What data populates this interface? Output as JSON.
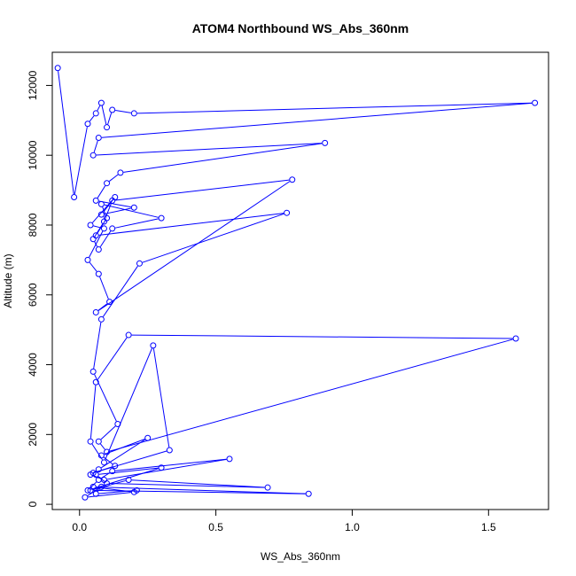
{
  "chart_data": {
    "type": "line",
    "title": "ATOM4 Northbound WS_Abs_360nm",
    "xlabel": "WS_Abs_360nm",
    "ylabel": "Altitude (m)",
    "xlim": [
      -0.1,
      1.72
    ],
    "ylim": [
      -150,
      12950
    ],
    "xticks": [
      0.0,
      0.5,
      1.0,
      1.5
    ],
    "xtick_labels": [
      "0.0",
      "0.5",
      "1.0",
      "1.5"
    ],
    "yticks": [
      0,
      2000,
      4000,
      6000,
      8000,
      10000,
      12000
    ],
    "ytick_labels": [
      "0",
      "2000",
      "4000",
      "6000",
      "8000",
      "10000",
      "12000"
    ],
    "marker": "open-circle",
    "color": "#0000ff",
    "series": [
      {
        "x": [
          -0.08,
          -0.02,
          0.03,
          0.06,
          0.08,
          0.1,
          0.12,
          0.2,
          1.67,
          0.07,
          0.05,
          0.9,
          0.15,
          0.1,
          0.06,
          0.2,
          0.08,
          0.13,
          0.04,
          0.09,
          0.03,
          0.07,
          0.11,
          0.06,
          0.78,
          0.12,
          0.09,
          0.05,
          0.07,
          0.12,
          0.3,
          0.08,
          0.1,
          0.06,
          0.76,
          0.22,
          0.08,
          0.05,
          0.14,
          0.07,
          0.1,
          1.6,
          0.18,
          0.06,
          0.04,
          0.09,
          0.27,
          0.33,
          0.05,
          0.13,
          0.08,
          0.25,
          0.07,
          0.04,
          0.09,
          0.55,
          0.12,
          0.07,
          0.03,
          0.3,
          0.06,
          0.1,
          0.69,
          0.18,
          0.04,
          0.84,
          0.05,
          0.2,
          0.02,
          0.08,
          0.06,
          0.21
        ],
        "y": [
          12500,
          8800,
          10900,
          11200,
          11500,
          10800,
          11300,
          11200,
          11500,
          10500,
          10000,
          10350,
          9500,
          9200,
          8700,
          8500,
          8300,
          8800,
          8000,
          7900,
          7000,
          6600,
          5800,
          5500,
          9300,
          8700,
          8100,
          7600,
          7300,
          7900,
          8200,
          8600,
          8200,
          7700,
          8350,
          6900,
          5300,
          3800,
          2300,
          1800,
          1500,
          4750,
          4850,
          3500,
          1800,
          1200,
          4550,
          1550,
          900,
          1100,
          1400,
          1900,
          1000,
          850,
          700,
          1300,
          950,
          700,
          400,
          1050,
          850,
          600,
          480,
          700,
          400,
          300,
          500,
          350,
          200,
          500,
          300,
          400
        ]
      }
    ]
  }
}
